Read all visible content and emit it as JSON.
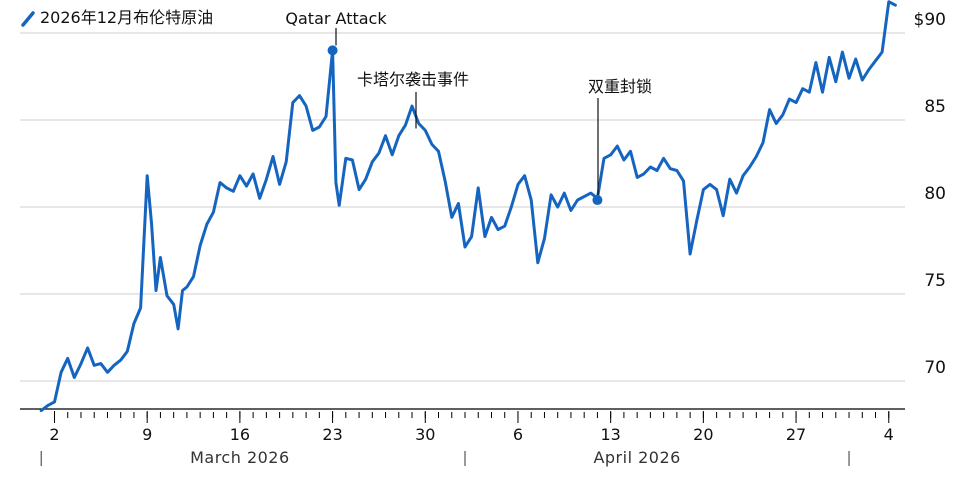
{
  "chart_data": {
    "type": "line",
    "title": "",
    "legend": {
      "label": "2026年12月布伦特原油",
      "placement": "top-left",
      "color": "#1565c0"
    },
    "ylim": [
      67.5,
      92
    ],
    "yticks": [
      {
        "value": 90,
        "label": "$90"
      },
      {
        "value": 85,
        "label": "85"
      },
      {
        "value": 80,
        "label": "80"
      },
      {
        "value": 75,
        "label": "75"
      },
      {
        "value": 70,
        "label": "70"
      }
    ],
    "xlim": [
      "2026-02-28",
      "2026-05-05"
    ],
    "xticks": [
      {
        "date": "2026-03-02",
        "label": "2"
      },
      {
        "date": "2026-03-09",
        "label": "9"
      },
      {
        "date": "2026-03-16",
        "label": "16"
      },
      {
        "date": "2026-03-23",
        "label": "23"
      },
      {
        "date": "2026-03-30",
        "label": "30"
      },
      {
        "date": "2026-04-06",
        "label": "6"
      },
      {
        "date": "2026-04-13",
        "label": "13"
      },
      {
        "date": "2026-04-20",
        "label": "20"
      },
      {
        "date": "2026-04-27",
        "label": "27"
      },
      {
        "date": "2026-05-04",
        "label": "4"
      }
    ],
    "months": [
      {
        "label": "March 2026",
        "center": "2026-03-16"
      },
      {
        "label": "April 2026",
        "center": "2026-04-15"
      }
    ],
    "month_separators": [
      "2026-03-01",
      "2026-04-02",
      "2026-05-01"
    ],
    "grid": true,
    "series": [
      {
        "name": "2026年12月布伦特原油",
        "color": "#1565c0",
        "points": [
          [
            "2026-03-01",
            68.3
          ],
          [
            "2026-03-01 12:00",
            68.6
          ],
          [
            "2026-03-02",
            68.8
          ],
          [
            "2026-03-02 12:00",
            70.5
          ],
          [
            "2026-03-03",
            71.3
          ],
          [
            "2026-03-03 12:00",
            70.2
          ],
          [
            "2026-03-04",
            71.0
          ],
          [
            "2026-03-04 12:00",
            71.9
          ],
          [
            "2026-03-05",
            70.9
          ],
          [
            "2026-03-05 12:00",
            71.0
          ],
          [
            "2026-03-06",
            70.5
          ],
          [
            "2026-03-06 12:00",
            70.9
          ],
          [
            "2026-03-07",
            71.2
          ],
          [
            "2026-03-07 12:00",
            71.7
          ],
          [
            "2026-03-08",
            73.3
          ],
          [
            "2026-03-08 12:00",
            74.2
          ],
          [
            "2026-03-09",
            81.8
          ],
          [
            "2026-03-09 08:00",
            79.0
          ],
          [
            "2026-03-09 16:00",
            75.2
          ],
          [
            "2026-03-10",
            77.1
          ],
          [
            "2026-03-10 12:00",
            74.9
          ],
          [
            "2026-03-11",
            74.4
          ],
          [
            "2026-03-11 08:00",
            73.0
          ],
          [
            "2026-03-11 16:00",
            75.2
          ],
          [
            "2026-03-12",
            75.4
          ],
          [
            "2026-03-12 12:00",
            76.0
          ],
          [
            "2026-03-13",
            77.8
          ],
          [
            "2026-03-13 12:00",
            79.0
          ],
          [
            "2026-03-14",
            79.7
          ],
          [
            "2026-03-14 12:00",
            81.4
          ],
          [
            "2026-03-15",
            81.1
          ],
          [
            "2026-03-15 12:00",
            80.9
          ],
          [
            "2026-03-16",
            81.8
          ],
          [
            "2026-03-16 12:00",
            81.2
          ],
          [
            "2026-03-17",
            81.9
          ],
          [
            "2026-03-17 12:00",
            80.5
          ],
          [
            "2026-03-18",
            81.6
          ],
          [
            "2026-03-18 12:00",
            82.9
          ],
          [
            "2026-03-19",
            81.3
          ],
          [
            "2026-03-19 12:00",
            82.6
          ],
          [
            "2026-03-20",
            86.0
          ],
          [
            "2026-03-20 12:00",
            86.4
          ],
          [
            "2026-03-21",
            85.8
          ],
          [
            "2026-03-21 12:00",
            84.4
          ],
          [
            "2026-03-22",
            84.6
          ],
          [
            "2026-03-22 12:00",
            85.2
          ],
          [
            "2026-03-23",
            89.0
          ],
          [
            "2026-03-23 06:00",
            81.4
          ],
          [
            "2026-03-23 12:00",
            80.1
          ],
          [
            "2026-03-24",
            82.8
          ],
          [
            "2026-03-24 12:00",
            82.7
          ],
          [
            "2026-03-25",
            81.0
          ],
          [
            "2026-03-25 12:00",
            81.6
          ],
          [
            "2026-03-26",
            82.6
          ],
          [
            "2026-03-26 12:00",
            83.1
          ],
          [
            "2026-03-27",
            84.1
          ],
          [
            "2026-03-27 12:00",
            83.0
          ],
          [
            "2026-03-28",
            84.1
          ],
          [
            "2026-03-28 12:00",
            84.7
          ],
          [
            "2026-03-29",
            85.8
          ],
          [
            "2026-03-29 12:00",
            84.8
          ],
          [
            "2026-03-30",
            84.4
          ],
          [
            "2026-03-30 12:00",
            83.6
          ],
          [
            "2026-03-31",
            83.2
          ],
          [
            "2026-03-31 12:00",
            81.5
          ],
          [
            "2026-04-01",
            79.4
          ],
          [
            "2026-04-01 12:00",
            80.2
          ],
          [
            "2026-04-02",
            77.7
          ],
          [
            "2026-04-02 12:00",
            78.3
          ],
          [
            "2026-04-03",
            81.1
          ],
          [
            "2026-04-03 12:00",
            78.3
          ],
          [
            "2026-04-04",
            79.4
          ],
          [
            "2026-04-04 12:00",
            78.7
          ],
          [
            "2026-04-05",
            78.9
          ],
          [
            "2026-04-05 12:00",
            80.0
          ],
          [
            "2026-04-06",
            81.3
          ],
          [
            "2026-04-06 12:00",
            81.8
          ],
          [
            "2026-04-07",
            80.4
          ],
          [
            "2026-04-07 12:00",
            76.8
          ],
          [
            "2026-04-08",
            78.2
          ],
          [
            "2026-04-08 12:00",
            80.7
          ],
          [
            "2026-04-09",
            80.0
          ],
          [
            "2026-04-09 12:00",
            80.8
          ],
          [
            "2026-04-10",
            79.8
          ],
          [
            "2026-04-10 12:00",
            80.4
          ],
          [
            "2026-04-11",
            80.6
          ],
          [
            "2026-04-11 12:00",
            80.8
          ],
          [
            "2026-04-12",
            80.5
          ],
          [
            "2026-04-12 12:00",
            82.8
          ],
          [
            "2026-04-13",
            83.0
          ],
          [
            "2026-04-13 12:00",
            83.5
          ],
          [
            "2026-04-14",
            82.7
          ],
          [
            "2026-04-14 12:00",
            83.2
          ],
          [
            "2026-04-15",
            81.7
          ],
          [
            "2026-04-15 12:00",
            81.9
          ],
          [
            "2026-04-16",
            82.3
          ],
          [
            "2026-04-16 12:00",
            82.1
          ],
          [
            "2026-04-17",
            82.8
          ],
          [
            "2026-04-17 12:00",
            82.2
          ],
          [
            "2026-04-18",
            82.1
          ],
          [
            "2026-04-18 12:00",
            81.5
          ],
          [
            "2026-04-19",
            77.3
          ],
          [
            "2026-04-19 12:00",
            79.2
          ],
          [
            "2026-04-20",
            81.0
          ],
          [
            "2026-04-20 12:00",
            81.3
          ],
          [
            "2026-04-21",
            81.0
          ],
          [
            "2026-04-21 12:00",
            79.5
          ],
          [
            "2026-04-22",
            81.6
          ],
          [
            "2026-04-22 12:00",
            80.8
          ],
          [
            "2026-04-23",
            81.8
          ],
          [
            "2026-04-23 12:00",
            82.3
          ],
          [
            "2026-04-24",
            82.9
          ],
          [
            "2026-04-24 12:00",
            83.7
          ],
          [
            "2026-04-25",
            85.6
          ],
          [
            "2026-04-25 12:00",
            84.8
          ],
          [
            "2026-04-26",
            85.3
          ],
          [
            "2026-04-26 12:00",
            86.2
          ],
          [
            "2026-04-27",
            86.0
          ],
          [
            "2026-04-27 12:00",
            86.8
          ],
          [
            "2026-04-28",
            86.6
          ],
          [
            "2026-04-28 12:00",
            88.3
          ],
          [
            "2026-04-29",
            86.6
          ],
          [
            "2026-04-29 12:00",
            88.6
          ],
          [
            "2026-04-30",
            87.2
          ],
          [
            "2026-04-30 12:00",
            88.9
          ],
          [
            "2026-05-01",
            87.4
          ],
          [
            "2026-05-01 12:00",
            88.5
          ],
          [
            "2026-05-02",
            87.3
          ],
          [
            "2026-05-02 12:00",
            87.9
          ],
          [
            "2026-05-03",
            88.4
          ],
          [
            "2026-05-03 12:00",
            88.9
          ],
          [
            "2026-05-04",
            91.8
          ],
          [
            "2026-05-04 12:00",
            91.6
          ]
        ]
      }
    ],
    "annotations": [
      {
        "label": "Qatar Attack",
        "date": "2026-03-23",
        "value": 89.0,
        "marker": true
      },
      {
        "label": "卡塔尔袭击事件",
        "date": "2026-03-29",
        "value": 84.4,
        "marker": false
      },
      {
        "label": "双重封锁",
        "date": "2026-04-12",
        "value": 80.4,
        "marker": true
      }
    ]
  }
}
